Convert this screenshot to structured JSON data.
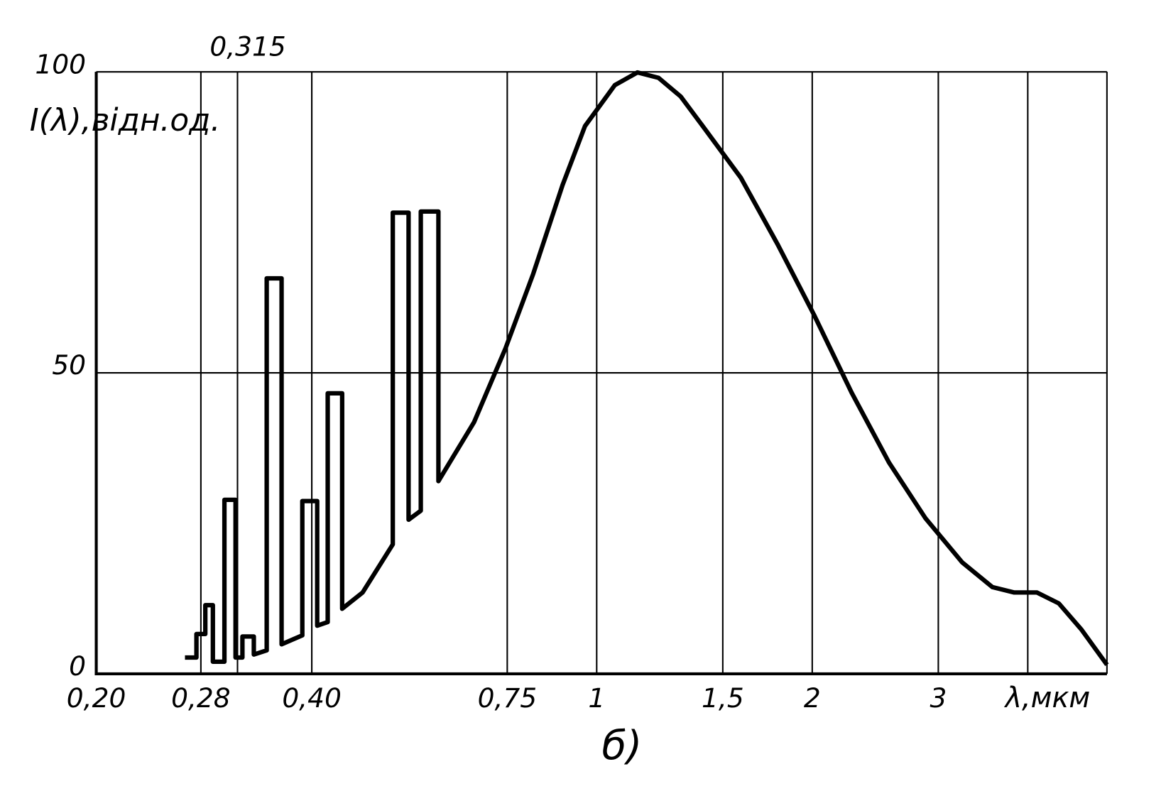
{
  "chart_data": {
    "type": "line",
    "ylabel": "I(λ),відн.од.",
    "xlabel": "λ,мкм",
    "caption": "б)",
    "xscale": "log",
    "grid": true,
    "xlim": [
      0.2,
      5.16
    ],
    "ylim": [
      0,
      100
    ],
    "yticks": [
      0,
      50,
      100
    ],
    "xticks": [
      {
        "value": 0.2,
        "label": "0,20"
      },
      {
        "value": 0.28,
        "label": "0,28"
      },
      {
        "value": 0.4,
        "label": "0,40"
      },
      {
        "value": 0.75,
        "label": "0,75"
      },
      {
        "value": 1,
        "label": "1"
      },
      {
        "value": 1.5,
        "label": "1,5"
      },
      {
        "value": 2,
        "label": "2"
      },
      {
        "value": 3,
        "label": "3"
      }
    ],
    "top_xticks": [
      {
        "value": 0.315,
        "label": "0,315"
      }
    ],
    "unlabeled_xgrid": [
      4
    ],
    "series": [
      {
        "color": "#000000",
        "x": [
          0.266,
          0.276,
          0.276,
          0.284,
          0.284,
          0.291,
          0.291,
          0.302,
          0.302,
          0.313,
          0.313,
          0.32,
          0.32,
          0.332,
          0.332,
          0.346,
          0.346,
          0.363,
          0.363,
          0.388,
          0.388,
          0.407,
          0.407,
          0.421,
          0.421,
          0.441,
          0.441,
          0.471,
          0.519,
          0.519,
          0.546,
          0.546,
          0.568,
          0.568,
          0.601,
          0.601,
          0.674,
          0.746,
          0.815,
          0.896,
          0.963,
          1.06,
          1.14,
          1.22,
          1.31,
          1.41,
          1.59,
          1.79,
          2.01,
          2.27,
          2.56,
          2.88,
          3.24,
          3.57,
          3.83,
          4.12,
          4.42,
          4.75,
          5.16
        ],
        "values": [
          2.7,
          2.7,
          6.6,
          6.6,
          11.4,
          11.4,
          2.0,
          2.0,
          28.9,
          28.9,
          2.7,
          2.7,
          6.2,
          6.2,
          3.2,
          3.9,
          65.7,
          65.7,
          4.9,
          6.4,
          28.7,
          28.7,
          8.0,
          8.6,
          46.6,
          46.6,
          10.8,
          13.5,
          21.5,
          76.6,
          76.6,
          25.6,
          27.1,
          76.8,
          76.8,
          32.0,
          41.8,
          54.1,
          66.4,
          81.2,
          91.0,
          97.8,
          99.9,
          99.0,
          95.9,
          90.8,
          82.4,
          71.3,
          59.7,
          46.7,
          35.1,
          25.8,
          18.5,
          14.4,
          13.5,
          13.5,
          11.7,
          7.4,
          1.5
        ]
      }
    ]
  }
}
